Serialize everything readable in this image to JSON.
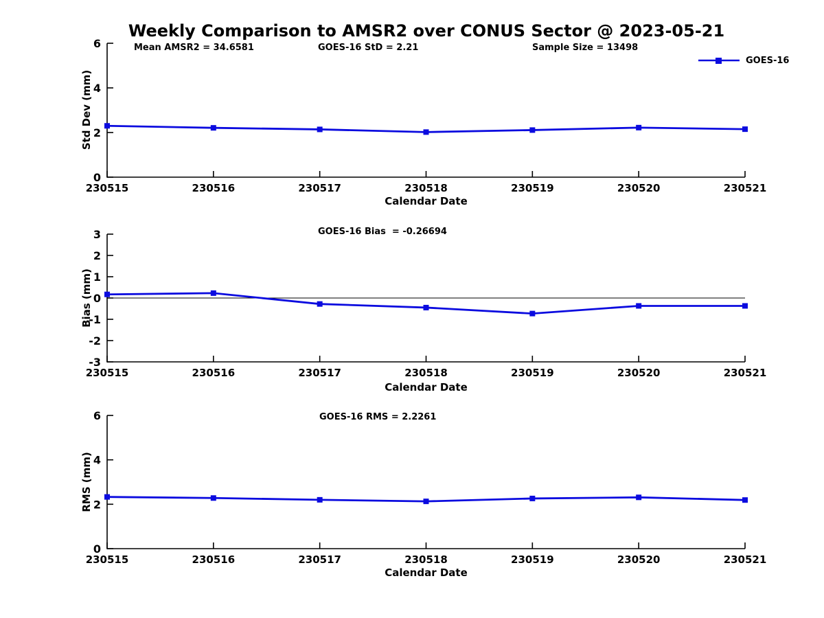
{
  "title": "Weekly Comparison to AMSR2 over CONUS Sector @ 2023-05-21",
  "legend": {
    "label": "GOES-16"
  },
  "colors": {
    "line": "#0b0bdf",
    "axis": "#000000"
  },
  "chart_data": [
    {
      "type": "line",
      "ylabel": "Std Dev (mm)",
      "xlabel": "Calendar Date",
      "x": [
        "230515",
        "230516",
        "230517",
        "230518",
        "230519",
        "230520",
        "230521"
      ],
      "series": [
        {
          "name": "GOES-16",
          "values": [
            2.3,
            2.21,
            2.14,
            2.02,
            2.11,
            2.22,
            2.15
          ]
        }
      ],
      "ylim": [
        0,
        6
      ],
      "yticks": [
        0,
        2,
        4,
        6
      ],
      "annotations": [
        "Mean AMSR2 = 34.6581",
        "GOES-16 StD = 2.21",
        "Sample Size = 13498"
      ],
      "legend_position": "top-right",
      "marker": "square",
      "grid": false,
      "zero_line": false
    },
    {
      "type": "line",
      "ylabel": "Bias (mm)",
      "xlabel": "Calendar Date",
      "x": [
        "230515",
        "230516",
        "230517",
        "230518",
        "230519",
        "230520",
        "230521"
      ],
      "series": [
        {
          "name": "GOES-16",
          "values": [
            0.17,
            0.23,
            -0.28,
            -0.45,
            -0.73,
            -0.37,
            -0.37
          ]
        }
      ],
      "ylim": [
        -3,
        3
      ],
      "yticks": [
        -3,
        -2,
        -1,
        0,
        1,
        2,
        3
      ],
      "annotations": [
        "GOES-16 Bias  = -0.26694"
      ],
      "marker": "square",
      "grid": false,
      "zero_line": true
    },
    {
      "type": "line",
      "ylabel": "RMS (mm)",
      "xlabel": "Calendar Date",
      "x": [
        "230515",
        "230516",
        "230517",
        "230518",
        "230519",
        "230520",
        "230521"
      ],
      "series": [
        {
          "name": "GOES-16",
          "values": [
            2.33,
            2.28,
            2.2,
            2.13,
            2.26,
            2.31,
            2.19
          ]
        }
      ],
      "ylim": [
        0,
        6
      ],
      "yticks": [
        0,
        2,
        4,
        6
      ],
      "annotations": [
        "GOES-16 RMS = 2.2261"
      ],
      "marker": "square",
      "grid": false,
      "zero_line": false
    }
  ]
}
